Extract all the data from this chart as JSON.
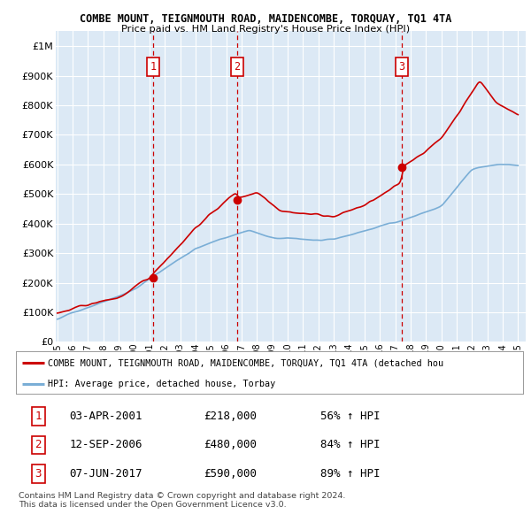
{
  "title": "COMBE MOUNT, TEIGNMOUTH ROAD, MAIDENCOMBE, TORQUAY, TQ1 4TA",
  "subtitle": "Price paid vs. HM Land Registry's House Price Index (HPI)",
  "background_color": "#ffffff",
  "plot_bg_color": "#dce9f5",
  "grid_color": "#ffffff",
  "ylim": [
    0,
    1050000
  ],
  "yticks": [
    0,
    100000,
    200000,
    300000,
    400000,
    500000,
    600000,
    700000,
    800000,
    900000,
    1000000
  ],
  "ytick_labels": [
    "£0",
    "£100K",
    "£200K",
    "£300K",
    "£400K",
    "£500K",
    "£600K",
    "£700K",
    "£800K",
    "£900K",
    "£1M"
  ],
  "xlim_start": 1994.9,
  "xlim_end": 2025.5,
  "xtick_years": [
    1995,
    1996,
    1997,
    1998,
    1999,
    2000,
    2001,
    2002,
    2003,
    2004,
    2005,
    2006,
    2007,
    2008,
    2009,
    2010,
    2011,
    2012,
    2013,
    2014,
    2015,
    2016,
    2017,
    2018,
    2019,
    2020,
    2021,
    2022,
    2023,
    2024,
    2025
  ],
  "sale_dates": [
    2001.25,
    2006.71,
    2017.43
  ],
  "sale_prices": [
    218000,
    480000,
    590000
  ],
  "sale_labels": [
    "1",
    "2",
    "3"
  ],
  "legend_red_label": "COMBE MOUNT, TEIGNMOUTH ROAD, MAIDENCOMBE, TORQUAY, TQ1 4TA (detached hou",
  "legend_blue_label": "HPI: Average price, detached house, Torbay",
  "table_rows": [
    [
      "1",
      "03-APR-2001",
      "£218,000",
      "56% ↑ HPI"
    ],
    [
      "2",
      "12-SEP-2006",
      "£480,000",
      "84% ↑ HPI"
    ],
    [
      "3",
      "07-JUN-2017",
      "£590,000",
      "89% ↑ HPI"
    ]
  ],
  "footer_text": "Contains HM Land Registry data © Crown copyright and database right 2024.\nThis data is licensed under the Open Government Licence v3.0.",
  "red_color": "#cc0000",
  "blue_color": "#7aaed6",
  "vline_color": "#cc0000",
  "box_color": "#cc0000"
}
